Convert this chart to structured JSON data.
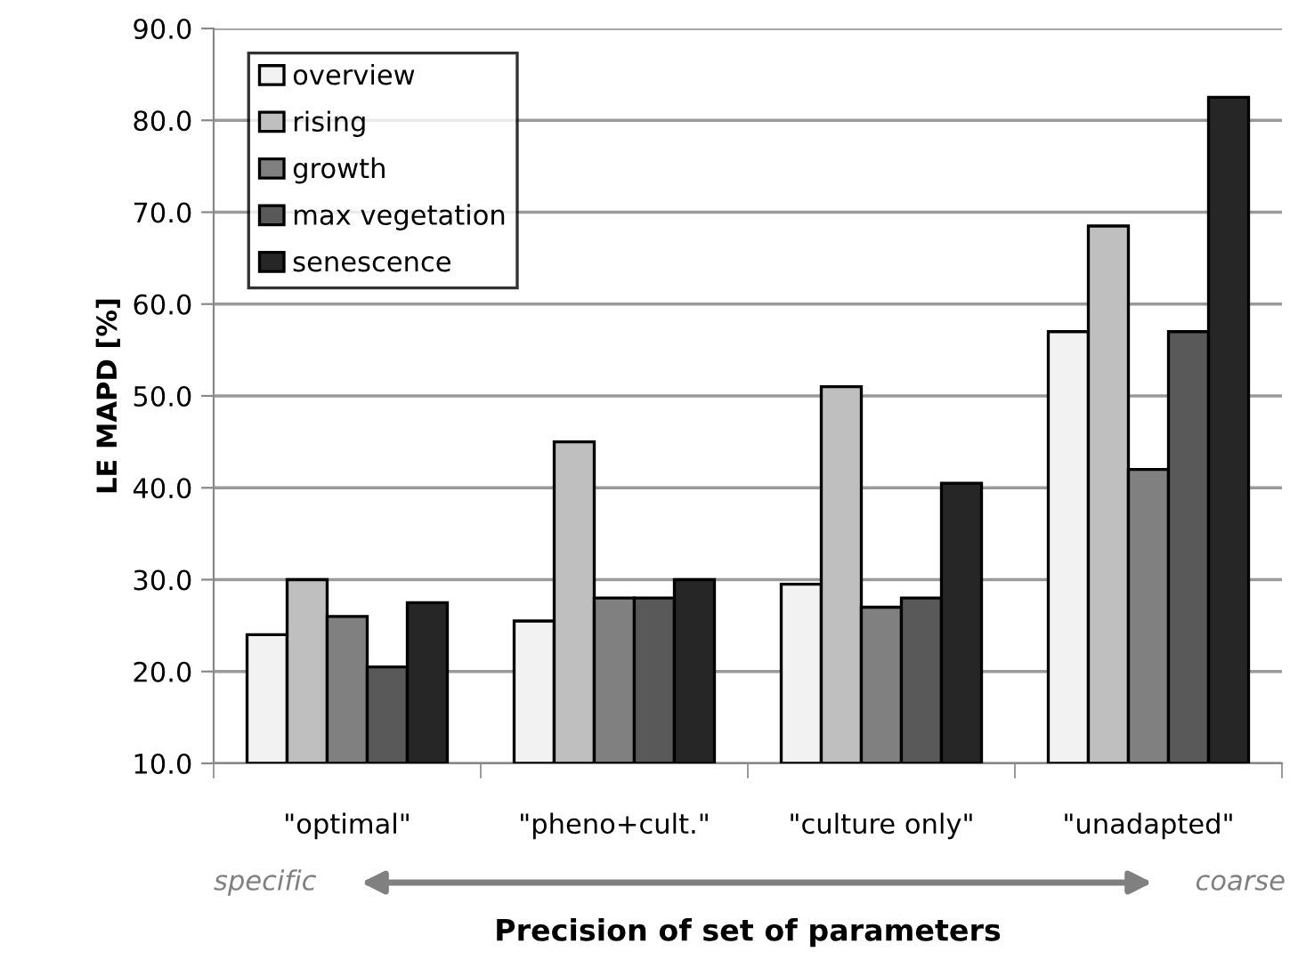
{
  "chart_data": {
    "type": "bar",
    "xlabel": "Precision of set of parameters",
    "ylabel": "LE MAPD [%]",
    "categories": [
      "\"optimal\"",
      "\"pheno+cult.\"",
      "\"culture only\"",
      "\"unadapted\""
    ],
    "series": [
      {
        "name": "overview",
        "color": "#f2f2f2",
        "values": [
          24.0,
          25.5,
          29.5,
          57.0
        ]
      },
      {
        "name": "rising",
        "color": "#bfbfbf",
        "values": [
          30.0,
          45.0,
          51.0,
          68.5
        ]
      },
      {
        "name": "growth",
        "color": "#808080",
        "values": [
          26.0,
          28.0,
          27.0,
          42.0
        ]
      },
      {
        "name": "max vegetation",
        "color": "#595959",
        "values": [
          20.5,
          28.0,
          28.0,
          57.0
        ]
      },
      {
        "name": "senescence",
        "color": "#262626",
        "values": [
          27.5,
          30.0,
          40.5,
          82.5
        ]
      }
    ],
    "ylim": [
      10,
      90
    ],
    "yticks": [
      {
        "value": 10,
        "label": "10.0"
      },
      {
        "value": 20,
        "label": "20.0"
      },
      {
        "value": 30,
        "label": "30.0"
      },
      {
        "value": 40,
        "label": "40.0"
      },
      {
        "value": 50,
        "label": "50.0"
      },
      {
        "value": 60,
        "label": "60.0"
      },
      {
        "value": 70,
        "label": "70.0"
      },
      {
        "value": 80,
        "label": "80.0"
      },
      {
        "value": 90,
        "label": "90.0"
      }
    ],
    "grid": "y",
    "legend": "top left",
    "annotations": [
      "specific",
      "coarse"
    ]
  }
}
